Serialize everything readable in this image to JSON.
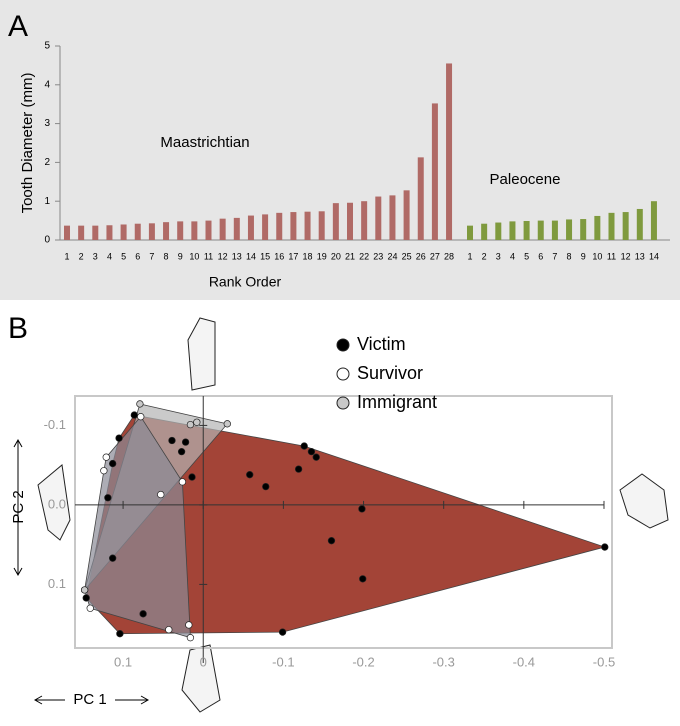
{
  "chart_data": [
    {
      "type": "bar",
      "panel_label": "A",
      "ylabel": "Tooth Diameter (mm)",
      "xlabel": "Rank Order",
      "ylim": [
        0,
        5
      ],
      "yticks": [
        0,
        1,
        2,
        3,
        4,
        5
      ],
      "groups": [
        {
          "name": "Maastrichtian",
          "color": "#b06a66",
          "categories": [
            "1",
            "2",
            "3",
            "4",
            "5",
            "6",
            "7",
            "8",
            "9",
            "10",
            "11",
            "12",
            "13",
            "14",
            "15",
            "16",
            "17",
            "18",
            "19",
            "20",
            "21",
            "22",
            "23",
            "24",
            "25",
            "26",
            "27",
            "28"
          ],
          "values": [
            0.37,
            0.37,
            0.37,
            0.38,
            0.4,
            0.42,
            0.43,
            0.46,
            0.48,
            0.48,
            0.5,
            0.55,
            0.57,
            0.63,
            0.66,
            0.7,
            0.72,
            0.73,
            0.74,
            0.95,
            0.96,
            1.0,
            1.12,
            1.15,
            1.28,
            2.13,
            3.52,
            4.55
          ]
        },
        {
          "name": "Paleocene",
          "color": "#7f9a3e",
          "categories": [
            "1",
            "2",
            "3",
            "4",
            "5",
            "6",
            "7",
            "8",
            "9",
            "10",
            "11",
            "12",
            "13",
            "14"
          ],
          "values": [
            0.37,
            0.42,
            0.45,
            0.48,
            0.49,
            0.5,
            0.5,
            0.53,
            0.54,
            0.62,
            0.7,
            0.72,
            0.8,
            1.0
          ]
        }
      ]
    },
    {
      "type": "scatter",
      "panel_label": "B",
      "xlabel": "PC 1",
      "ylabel": "PC 2",
      "xlim": [
        0.16,
        -0.51
      ],
      "ylim": [
        0.18,
        -0.137
      ],
      "xticks": [
        0.1,
        0,
        -0.1,
        -0.2,
        -0.3,
        -0.4,
        -0.5
      ],
      "yticks": [
        -0.1,
        {
          "value": 0,
          "label": "0.0"
        },
        0.1
      ],
      "series": [
        {
          "name": "Victim",
          "color": "#000000",
          "hull": "#9e3a2c",
          "x": [
            0.086,
            0.105,
            0.113,
            0.119,
            0.113,
            0.146,
            0.104,
            0.075,
            0.039,
            0.022,
            0.027,
            0.014,
            -0.058,
            -0.078,
            -0.126,
            -0.141,
            -0.119,
            -0.135,
            -0.198,
            -0.16,
            -0.199,
            -0.501,
            -0.099
          ],
          "values": [
            -0.113,
            -0.084,
            -0.052,
            -0.009,
            0.067,
            0.117,
            0.162,
            0.137,
            -0.081,
            -0.079,
            -0.067,
            -0.035,
            -0.038,
            -0.023,
            -0.074,
            -0.06,
            -0.045,
            -0.067,
            0.005,
            0.045,
            0.093,
            0.053,
            0.16
          ]
        },
        {
          "name": "Survivor",
          "color": "#ffffff",
          "hull": "#8a8a96",
          "x": [
            0.124,
            0.121,
            0.078,
            0.026,
            0.053,
            0.148,
            0.141,
            0.043,
            0.016,
            0.018
          ],
          "values": [
            -0.043,
            -0.06,
            -0.111,
            -0.029,
            -0.013,
            0.107,
            0.13,
            0.157,
            0.167,
            0.151
          ]
        },
        {
          "name": "Immigrant",
          "color": "#c8c8c8",
          "hull": "#b4b4b4",
          "x": [
            0.079,
            0.016,
            0.008,
            -0.03,
            0.148
          ],
          "values": [
            -0.127,
            -0.101,
            -0.104,
            -0.102,
            0.107
          ]
        }
      ]
    }
  ]
}
